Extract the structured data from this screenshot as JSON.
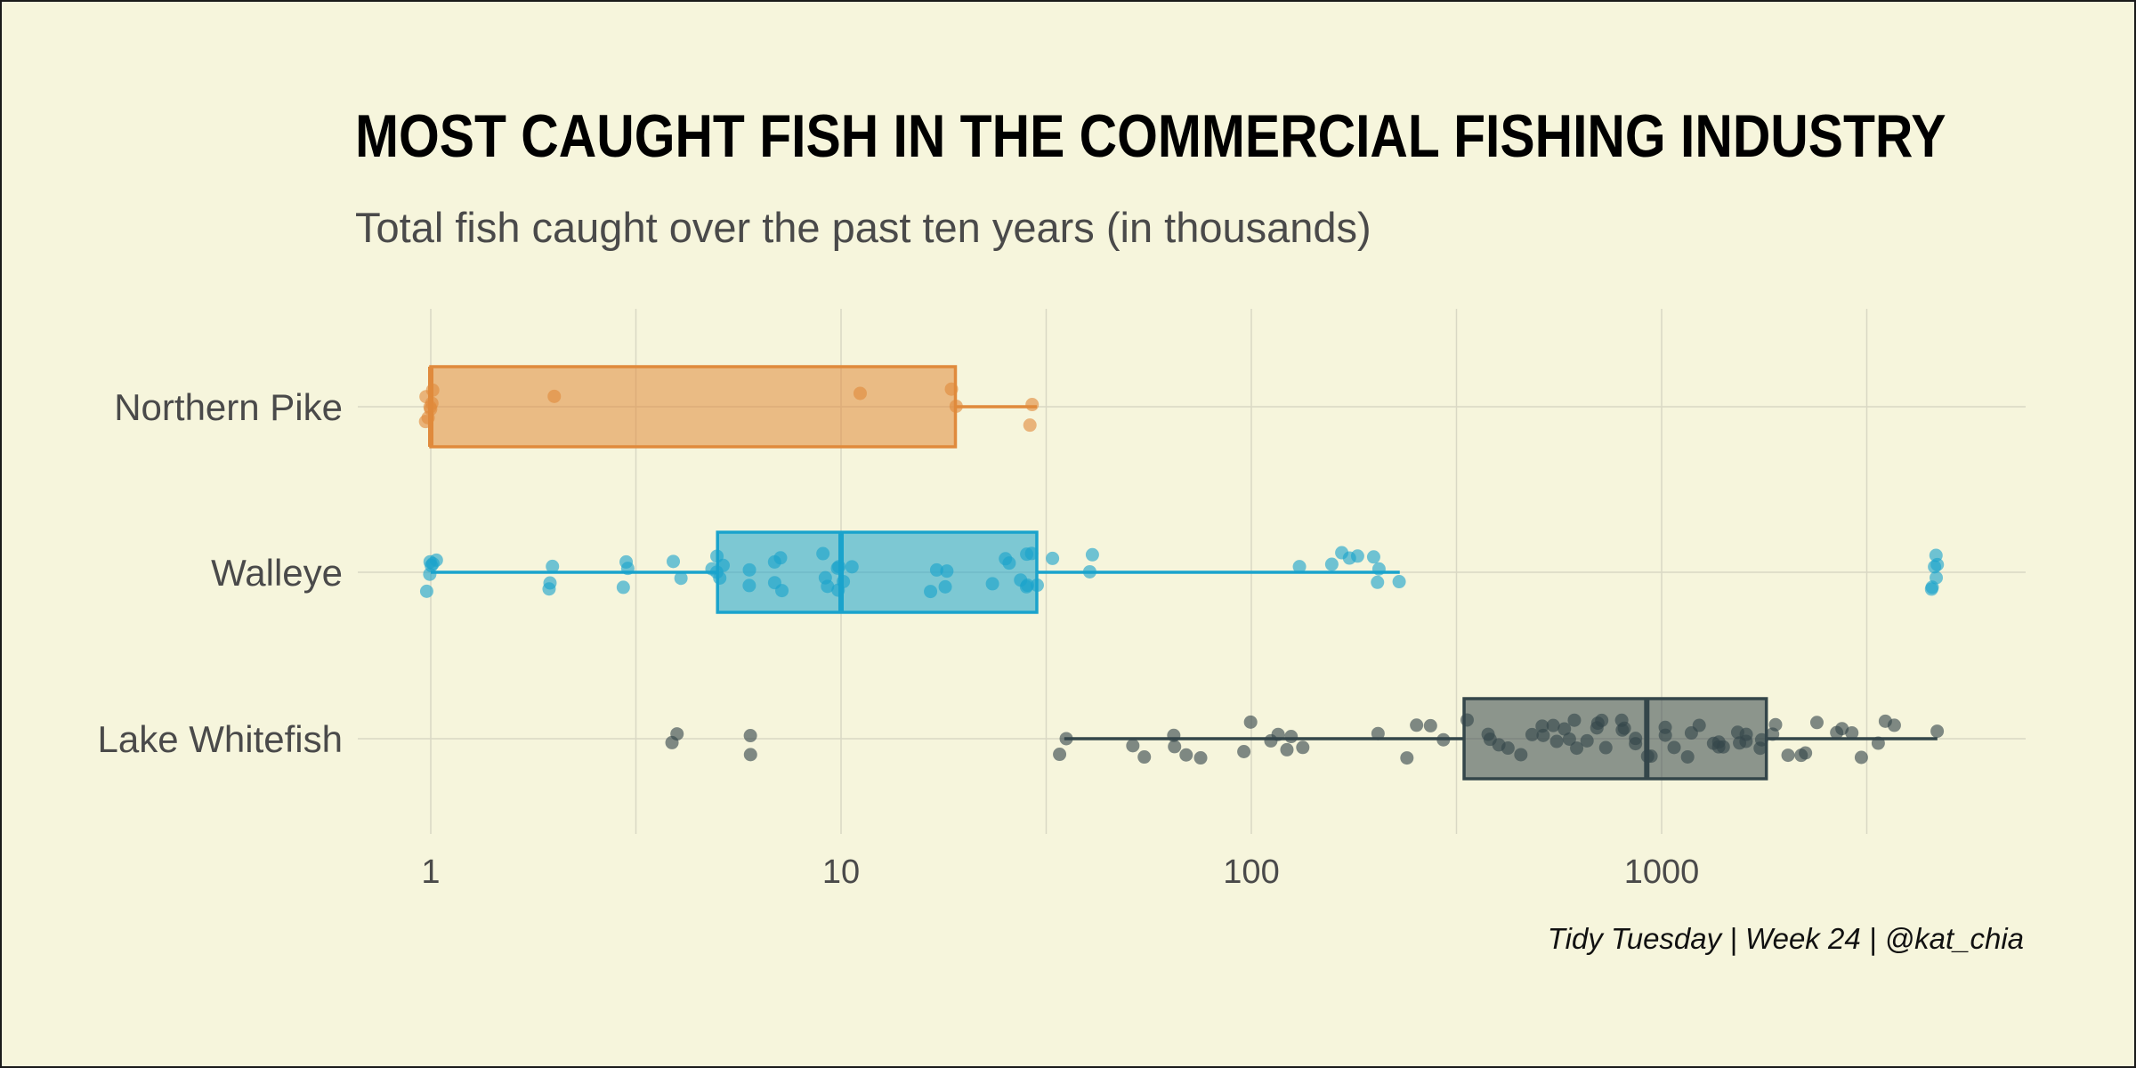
{
  "chart_data": {
    "type": "boxplot",
    "title": "MOST CAUGHT FISH IN THE COMMERCIAL FISHING INDUSTRY",
    "subtitle": "Total fish caught over the past ten years (in thousands)",
    "caption": "Tidy Tuesday | Week 24 | @kat_chia",
    "xlabel": "",
    "ylabel": "",
    "x_scale": "log10",
    "xlim": [
      0.5,
      7000
    ],
    "x_ticks": [
      1,
      10,
      100,
      1000
    ],
    "x_tick_labels": [
      "1",
      "10",
      "100",
      "1000"
    ],
    "grid": true,
    "legend": "none",
    "categories": [
      "Northern Pike",
      "Walleye",
      "Lake Whitefish"
    ],
    "series": [
      {
        "category": "Northern Pike",
        "color": "#e08a3c",
        "box": {
          "min": 1,
          "q1": 1,
          "median": 1,
          "q3": 19,
          "max": 30
        },
        "points": [
          1,
          1,
          1,
          1,
          1,
          1,
          1,
          2,
          11,
          19,
          19,
          28,
          30
        ]
      },
      {
        "category": "Walleye",
        "color": "#1aa3cc",
        "box": {
          "min": 1,
          "q1": 5,
          "median": 10,
          "q3": 30,
          "max": 230
        },
        "points": [
          1,
          1,
          1,
          1,
          1,
          1,
          2,
          2,
          2,
          3,
          3,
          3,
          4,
          4,
          5,
          5,
          5,
          5,
          5,
          6,
          6,
          7,
          7,
          7,
          7,
          9,
          9,
          9,
          10,
          10,
          10,
          10,
          11,
          17,
          17,
          18,
          18,
          24,
          25,
          26,
          27,
          28,
          29,
          29,
          30,
          30,
          32,
          41,
          41,
          135,
          160,
          170,
          170,
          180,
          200,
          205,
          210,
          230,
          4600,
          4600,
          4700,
          4700,
          4800,
          4800
        ]
      },
      {
        "category": "Lake Whitefish",
        "color": "#34464a",
        "box": {
          "min": 35,
          "q1": 330,
          "median": 920,
          "q3": 1800,
          "max": 4700
        },
        "points": [
          4,
          4,
          6,
          6,
          35,
          35,
          50,
          55,
          63,
          65,
          68,
          75,
          95,
          100,
          108,
          115,
          120,
          125,
          130,
          210,
          240,
          250,
          270,
          300,
          340,
          370,
          390,
          410,
          430,
          460,
          480,
          500,
          520,
          540,
          560,
          580,
          600,
          620,
          640,
          660,
          680,
          700,
          720,
          750,
          780,
          800,
          820,
          850,
          880,
          900,
          950,
          1000,
          1050,
          1100,
          1150,
          1200,
          1250,
          1300,
          1350,
          1400,
          1450,
          1500,
          1550,
          1600,
          1650,
          1700,
          1750,
          1850,
          1950,
          2050,
          2150,
          2250,
          2400,
          2600,
          2800,
          3000,
          3100,
          3300,
          3500,
          3700,
          4700
        ]
      }
    ]
  }
}
